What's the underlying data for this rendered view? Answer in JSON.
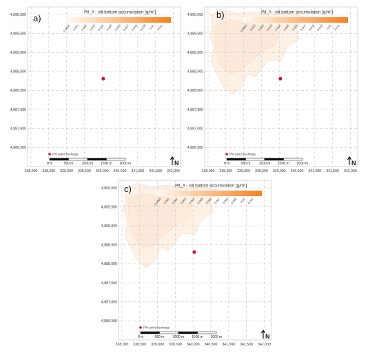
{
  "figure": {
    "legend_title": "Ptl_A - silt bottom accumulation [g/m²]",
    "legend_ticks": [
      "0.0005",
      "0.001",
      "0.002",
      "0.003",
      "0.004",
      "0.005",
      "0.006",
      "0.007",
      "0.008",
      "0.009",
      "0.01",
      "0.011"
    ],
    "legend_colors": [
      "#fffaf3",
      "#f58220"
    ],
    "plume_color": "#fbe3cf",
    "discharge_marker_color": "#c8102e",
    "discharge_label": "PW point discharge",
    "scale_labels": [
      "0 m",
      "500 m",
      "1000 m",
      "1500 m",
      "2000 m"
    ],
    "north_label": "N",
    "y_ticks": [
      "4,890,000",
      "4,889,500",
      "4,889,000",
      "4,888,500",
      "4,888,000",
      "4,887,500",
      "4,887,000",
      "4,886,500"
    ],
    "x_ticks": [
      "338,000",
      "338,500",
      "339,000",
      "339,500",
      "340,000",
      "340,500",
      "341,000",
      "341,500",
      "342,000"
    ]
  },
  "panels": [
    {
      "label": "a)",
      "plume": false
    },
    {
      "label": "b)",
      "plume": true
    },
    {
      "label": "c)",
      "plume": true
    }
  ]
}
